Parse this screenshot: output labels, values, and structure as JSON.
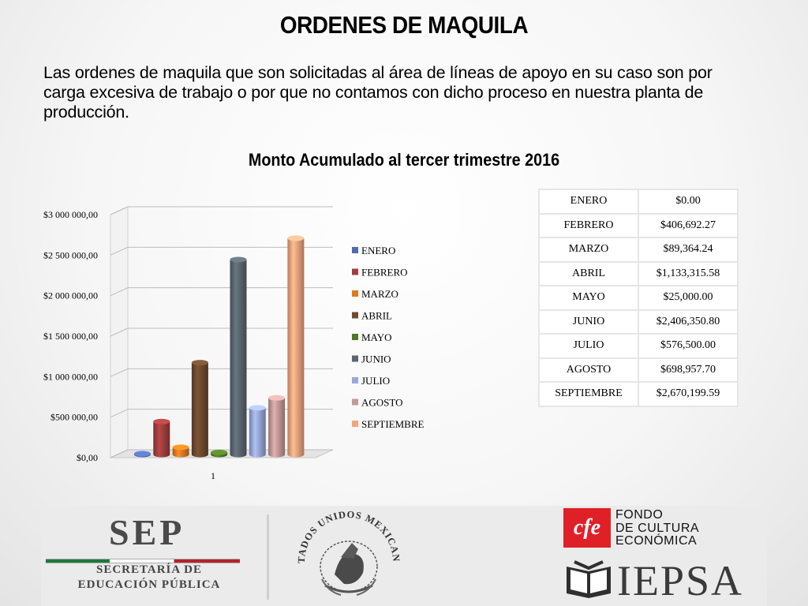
{
  "slide": {
    "title": "ORDENES DE MAQUILA",
    "intro": "Las ordenes de maquila que son solicitadas al área de líneas de apoyo en su caso son por carga excesiva de trabajo o por que no contamos con dicho proceso en nuestra planta de producción."
  },
  "chart_data": {
    "type": "bar",
    "title": "Monto Acumulado al tercer trimestre 2016",
    "categories": [
      "1"
    ],
    "series": [
      {
        "name": "ENERO",
        "values": [
          0
        ],
        "color": "#4f6bb0"
      },
      {
        "name": "FEBRERO",
        "values": [
          406692.27
        ],
        "color": "#a13e3e"
      },
      {
        "name": "MARZO",
        "values": [
          89364.24
        ],
        "color": "#e07a1f"
      },
      {
        "name": "ABRIL",
        "values": [
          1133315.58
        ],
        "color": "#6e4a2e"
      },
      {
        "name": "MAYO",
        "values": [
          25000
        ],
        "color": "#4f7a24"
      },
      {
        "name": "JUNIO",
        "values": [
          2406350.8
        ],
        "color": "#5b6670"
      },
      {
        "name": "JULIO",
        "values": [
          576500
        ],
        "color": "#98a8d8"
      },
      {
        "name": "AGOSTO",
        "values": [
          698957.7
        ],
        "color": "#c49a98"
      },
      {
        "name": "SEPTIEMBRE",
        "values": [
          2670199.59
        ],
        "color": "#f4a57e"
      }
    ],
    "y_ticks": [
      "$0,00",
      "$500 000,00",
      "$1 000 000,00",
      "$1 500 000,00",
      "$2 000 000,00",
      "$2 500 000,00",
      "$3 000 000,00"
    ],
    "ylim": [
      0,
      3000000
    ],
    "grid": true,
    "legend_position": "right"
  },
  "table": {
    "rows": [
      {
        "month": "ENERO",
        "amount": "$0.00"
      },
      {
        "month": "FEBRERO",
        "amount": "$406,692.27"
      },
      {
        "month": "MARZO",
        "amount": "$89,364.24"
      },
      {
        "month": "ABRIL",
        "amount": "$1,133,315.58"
      },
      {
        "month": "MAYO",
        "amount": "$25,000.00"
      },
      {
        "month": "JUNIO",
        "amount": "$2,406,350.80"
      },
      {
        "month": "JULIO",
        "amount": "$576,500.00"
      },
      {
        "month": "AGOSTO",
        "amount": "$698,957.70"
      },
      {
        "month": "SEPTIEMBRE",
        "amount": "$2,670,199.59"
      }
    ]
  },
  "footer": {
    "sep_acronym": "SEP",
    "sep_line1": "SECRETARÍA DE",
    "sep_line2": "EDUCACIÓN PÚBLICA",
    "seal_text": "ESTADOS UNIDOS MEXICANOS",
    "fce_mark": "cfe",
    "fce_line1": "FONDO",
    "fce_line2": "DE CULTURA",
    "fce_line3": "ECONÓMICA",
    "iepsa": "IEPSA"
  }
}
